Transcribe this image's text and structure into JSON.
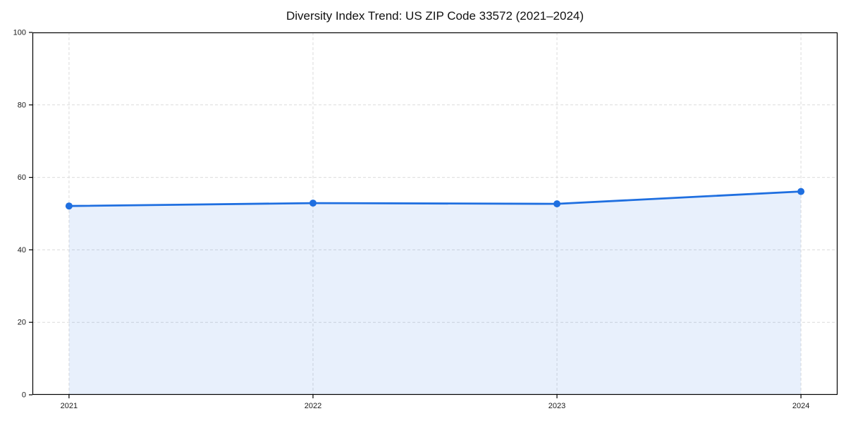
{
  "chart_data": {
    "type": "line",
    "title": "Diversity Index Trend: US ZIP Code 33572 (2021–2024)",
    "categories": [
      "2021",
      "2022",
      "2023",
      "2024"
    ],
    "series": [
      {
        "name": "Diversity Index",
        "values": [
          52.1,
          52.9,
          52.7,
          56.1
        ]
      }
    ],
    "xlabel": "",
    "ylabel": "",
    "ylim": [
      0,
      100
    ],
    "yticks": [
      0,
      20,
      40,
      60,
      80,
      100
    ],
    "grid": true,
    "grid_style": "dashed",
    "legend_position": "none",
    "marker": "circle",
    "area_fill": true,
    "colors": {
      "line": "#1f6fe0",
      "marker": "#1f6fe0",
      "area_fill": "rgba(31,111,224,0.10)",
      "grid": "#dcdcdc",
      "frame": "#000000",
      "tick_text": "#1a1a1a",
      "background": "#ffffff"
    }
  }
}
